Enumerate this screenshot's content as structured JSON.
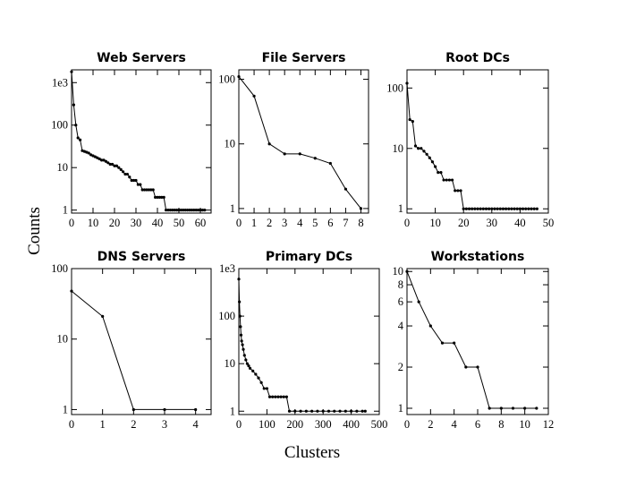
{
  "figure": {
    "xlabel": "Clusters",
    "ylabel": "Counts"
  },
  "chart_data": [
    {
      "type": "line",
      "title": "Web Servers",
      "yscale": "log",
      "xlim": [
        0,
        65
      ],
      "ylim": [
        0.85,
        2000
      ],
      "xticks": [
        0,
        10,
        20,
        30,
        40,
        50,
        60
      ],
      "yticks": [
        {
          "value": 1,
          "label": "1"
        },
        {
          "value": 10,
          "label": "10"
        },
        {
          "value": 100,
          "label": "100"
        },
        {
          "value": 1000,
          "label": "1e3"
        }
      ],
      "x": [
        0,
        1,
        2,
        3,
        4,
        5,
        6,
        7,
        8,
        9,
        10,
        11,
        12,
        13,
        14,
        15,
        16,
        17,
        18,
        19,
        20,
        21,
        22,
        23,
        24,
        25,
        26,
        27,
        28,
        29,
        30,
        31,
        32,
        33,
        34,
        35,
        36,
        37,
        38,
        39,
        40,
        41,
        42,
        43,
        44,
        45,
        46,
        47,
        48,
        49,
        50,
        51,
        52,
        53,
        54,
        55,
        56,
        57,
        58,
        59,
        60,
        61,
        62
      ],
      "y": [
        1800,
        300,
        100,
        50,
        45,
        25,
        24,
        23,
        22,
        20,
        19,
        18,
        17,
        16,
        15,
        15,
        14,
        13,
        12,
        12,
        11,
        11,
        10,
        9,
        8,
        7,
        7,
        6,
        5,
        5,
        5,
        4,
        4,
        3,
        3,
        3,
        3,
        3,
        3,
        2,
        2,
        2,
        2,
        2,
        1,
        1,
        1,
        1,
        1,
        1,
        1,
        1,
        1,
        1,
        1,
        1,
        1,
        1,
        1,
        1,
        1,
        1,
        1
      ]
    },
    {
      "type": "line",
      "title": "File Servers",
      "yscale": "log",
      "xlim": [
        0,
        8.5
      ],
      "ylim": [
        0.85,
        140
      ],
      "xticks": [
        0,
        1,
        2,
        3,
        4,
        5,
        6,
        7,
        8
      ],
      "yticks": [
        {
          "value": 1,
          "label": "1"
        },
        {
          "value": 10,
          "label": "10"
        },
        {
          "value": 100,
          "label": "100"
        }
      ],
      "x": [
        0,
        1,
        2,
        3,
        4,
        5,
        6,
        7,
        8
      ],
      "y": [
        110,
        55,
        10,
        7,
        7,
        6,
        5,
        2,
        1
      ]
    },
    {
      "type": "line",
      "title": "Root DCs",
      "yscale": "log",
      "xlim": [
        0,
        50
      ],
      "ylim": [
        0.85,
        200
      ],
      "xticks": [
        0,
        10,
        20,
        30,
        40,
        50
      ],
      "yticks": [
        {
          "value": 1,
          "label": "1"
        },
        {
          "value": 10,
          "label": "10"
        },
        {
          "value": 100,
          "label": "100"
        }
      ],
      "x": [
        0,
        1,
        2,
        3,
        4,
        5,
        6,
        7,
        8,
        9,
        10,
        11,
        12,
        13,
        14,
        15,
        16,
        17,
        18,
        19,
        20,
        21,
        22,
        23,
        24,
        25,
        26,
        27,
        28,
        29,
        30,
        31,
        32,
        33,
        34,
        35,
        36,
        37,
        38,
        39,
        40,
        41,
        42,
        43,
        44,
        45,
        46
      ],
      "y": [
        120,
        30,
        28,
        11,
        10,
        10,
        9,
        8,
        7,
        6,
        5,
        4,
        4,
        3,
        3,
        3,
        3,
        2,
        2,
        2,
        1,
        1,
        1,
        1,
        1,
        1,
        1,
        1,
        1,
        1,
        1,
        1,
        1,
        1,
        1,
        1,
        1,
        1,
        1,
        1,
        1,
        1,
        1,
        1,
        1,
        1,
        1
      ]
    },
    {
      "type": "line",
      "title": "DNS Servers",
      "yscale": "log",
      "xlim": [
        0,
        4.5
      ],
      "ylim": [
        0.85,
        100
      ],
      "xticks": [
        0,
        1,
        2,
        3,
        4
      ],
      "yticks": [
        {
          "value": 1,
          "label": "1"
        },
        {
          "value": 10,
          "label": "10"
        },
        {
          "value": 100,
          "label": "100"
        }
      ],
      "x": [
        0,
        1,
        2,
        3,
        4
      ],
      "y": [
        48,
        21,
        1,
        1,
        1
      ]
    },
    {
      "type": "line",
      "title": "Primary DCs",
      "yscale": "log",
      "xlim": [
        0,
        500
      ],
      "ylim": [
        0.85,
        1000
      ],
      "xticks": [
        0,
        100,
        200,
        300,
        400,
        500
      ],
      "yticks": [
        {
          "value": 1,
          "label": "1"
        },
        {
          "value": 10,
          "label": "10"
        },
        {
          "value": 100,
          "label": "100"
        },
        {
          "value": 1000,
          "label": "1e3"
        }
      ],
      "x": [
        0,
        2,
        4,
        6,
        8,
        10,
        13,
        16,
        20,
        25,
        30,
        35,
        40,
        50,
        60,
        70,
        80,
        90,
        100,
        110,
        120,
        130,
        140,
        150,
        160,
        170,
        180,
        200,
        220,
        240,
        260,
        280,
        300,
        320,
        340,
        360,
        380,
        400,
        420,
        440,
        450
      ],
      "y": [
        600,
        200,
        100,
        60,
        40,
        30,
        25,
        20,
        15,
        12,
        10,
        9,
        8,
        7,
        6,
        5,
        4,
        3,
        3,
        2,
        2,
        2,
        2,
        2,
        2,
        2,
        1,
        1,
        1,
        1,
        1,
        1,
        1,
        1,
        1,
        1,
        1,
        1,
        1,
        1,
        1
      ]
    },
    {
      "type": "line",
      "title": "Workstations",
      "yscale": "log",
      "xlim": [
        0,
        12
      ],
      "ylim": [
        0.9,
        10.5
      ],
      "xticks": [
        0,
        2,
        4,
        6,
        8,
        10,
        12
      ],
      "yticks": [
        {
          "value": 1,
          "label": "1"
        },
        {
          "value": 2,
          "label": "2"
        },
        {
          "value": 4,
          "label": "4"
        },
        {
          "value": 6,
          "label": "6"
        },
        {
          "value": 8,
          "label": "8"
        },
        {
          "value": 10,
          "label": "10"
        }
      ],
      "x": [
        0,
        1,
        2,
        3,
        4,
        5,
        6,
        7,
        8,
        9,
        10,
        11
      ],
      "y": [
        10,
        6,
        4,
        3,
        3,
        2,
        2,
        1,
        1,
        1,
        1,
        1
      ]
    }
  ]
}
